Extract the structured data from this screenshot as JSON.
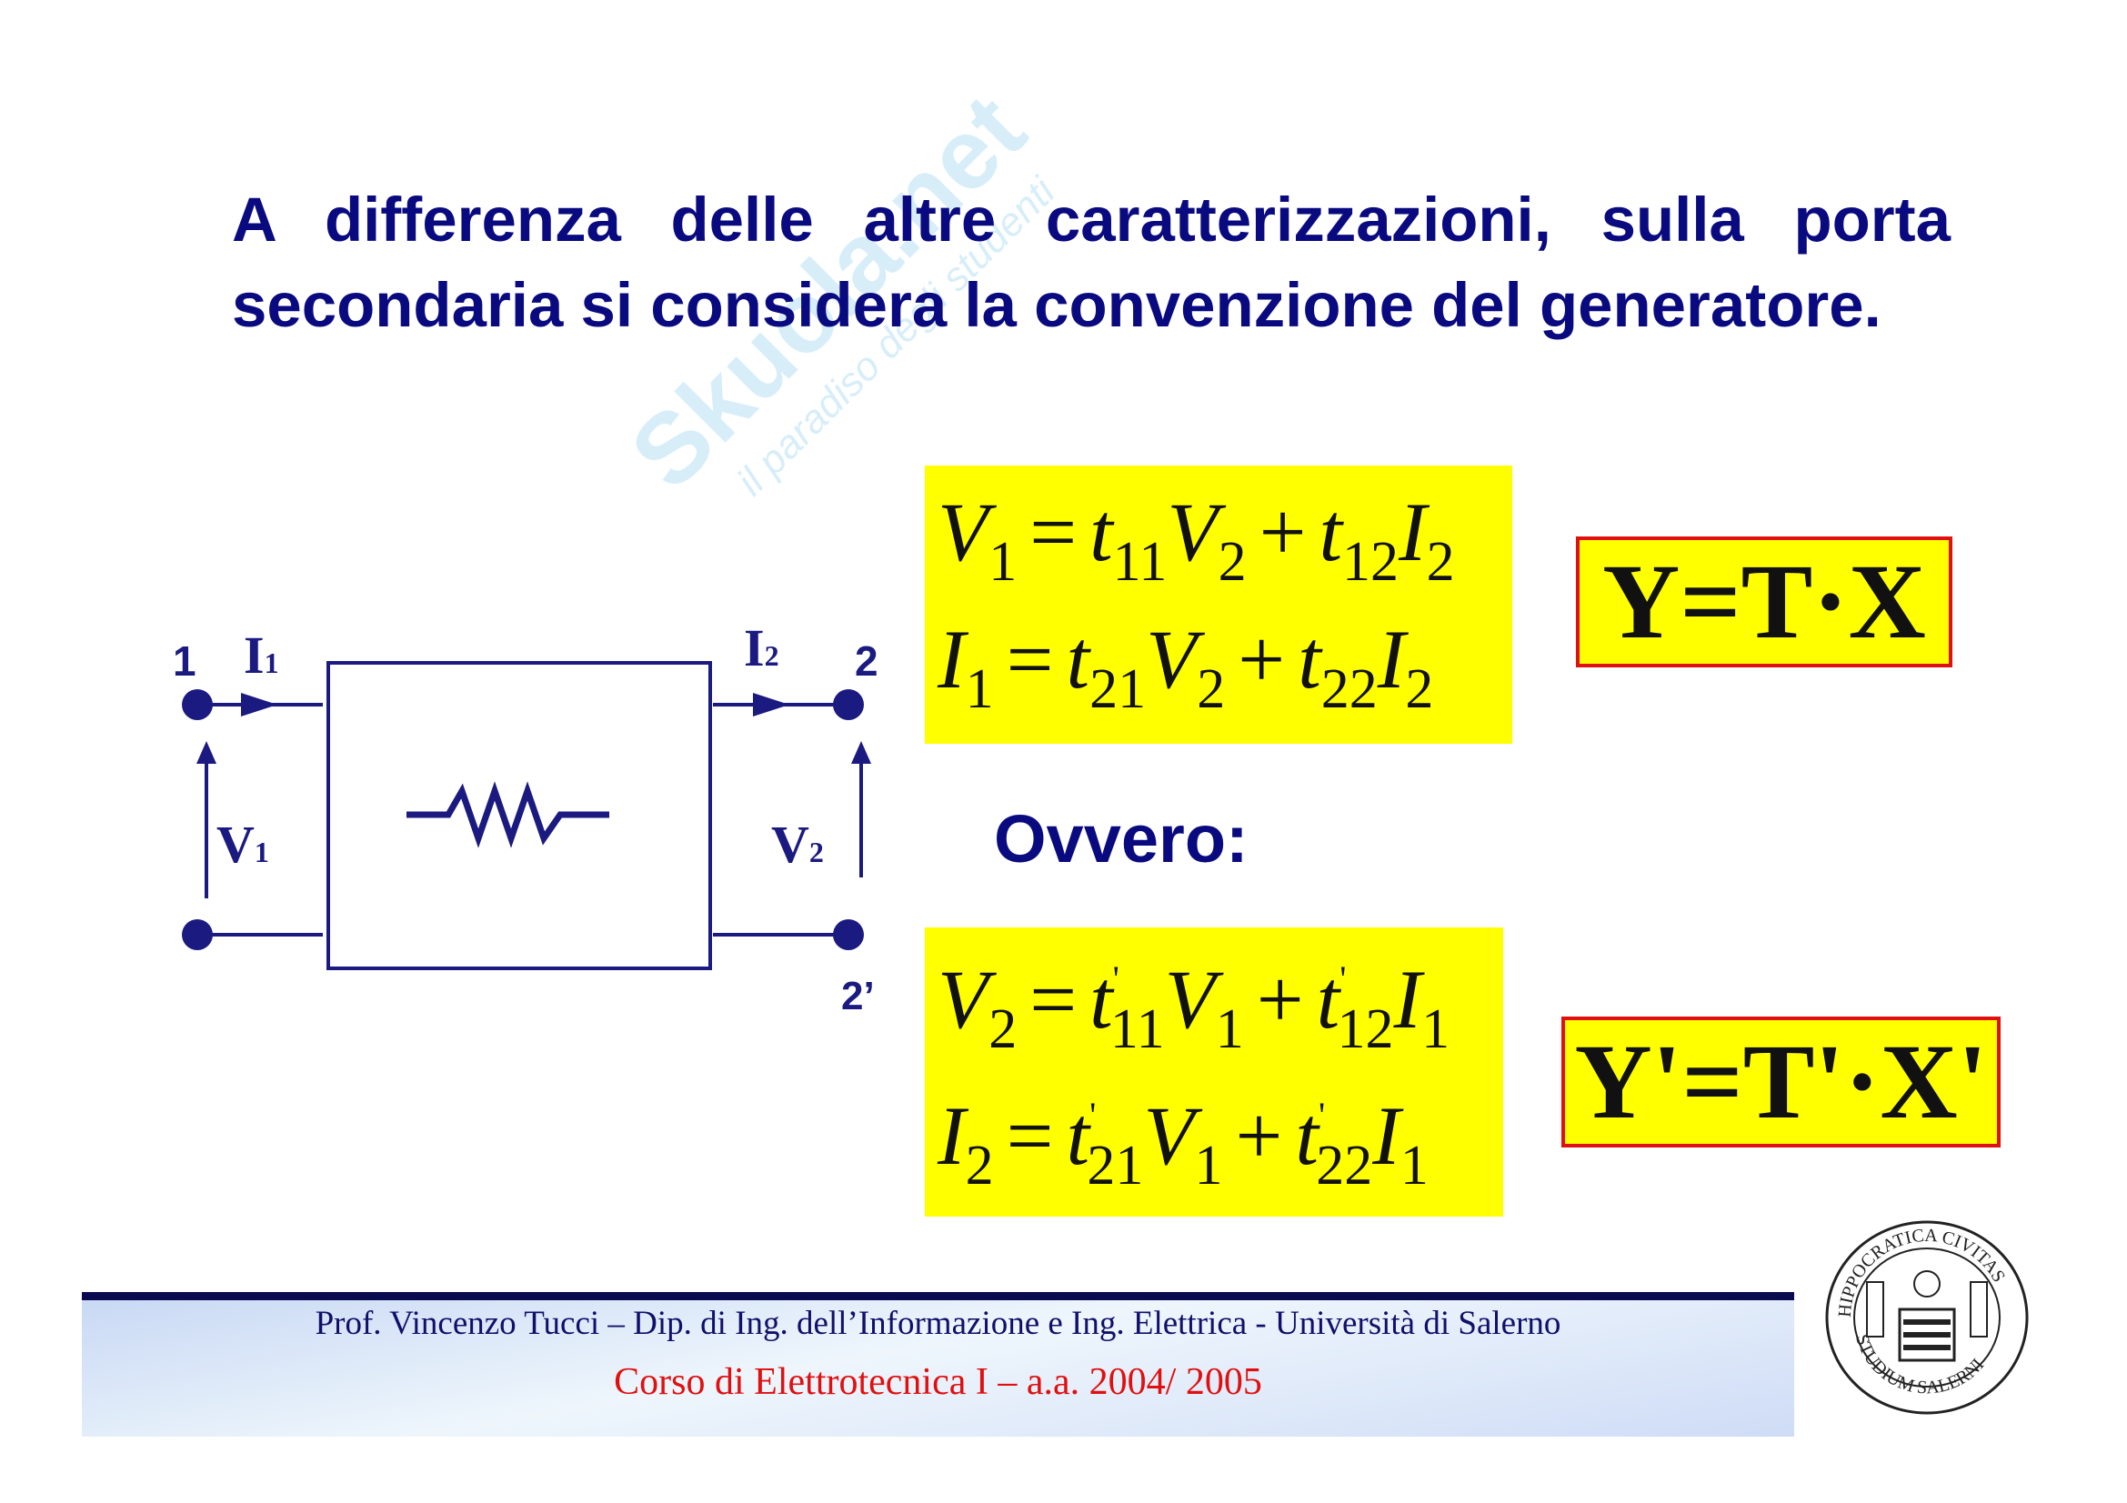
{
  "slide": {
    "title": "A differenza delle altre caratterizzazioni, sulla porta secondaria si considera la convenzione del generatore.",
    "watermark": {
      "brand": "Skuola.net",
      "tagline": "il paradiso degli studenti"
    },
    "circuit": {
      "port1_label": "1",
      "port2_label": "2",
      "port2_prime_label": "2’",
      "current1": "I",
      "current1_sub": "1",
      "current2": "I",
      "current2_sub": "2",
      "voltage1": "V",
      "voltage1_sub": "1",
      "voltage2": "V",
      "voltage2_sub": "2"
    },
    "equations_direct": [
      {
        "lhs": "V",
        "lhs_sub": "1",
        "a": "t",
        "a_sub": "11",
        "x1": "V",
        "x1_sub": "2",
        "b": "t",
        "b_sub": "12",
        "x2": "I",
        "x2_sub": "2"
      },
      {
        "lhs": "I",
        "lhs_sub": "1",
        "a": "t",
        "a_sub": "21",
        "x1": "V",
        "x1_sub": "2",
        "b": "t",
        "b_sub": "22",
        "x2": "I",
        "x2_sub": "2"
      }
    ],
    "matrix_direct": "Y=T·X",
    "ovvero": "Ovvero:",
    "equations_inverse": [
      {
        "lhs": "V",
        "lhs_sub": "2",
        "a": "t",
        "a_sub": "11",
        "x1": "V",
        "x1_sub": "1",
        "b": "t",
        "b_sub": "12",
        "x2": "I",
        "x2_sub": "1"
      },
      {
        "lhs": "I",
        "lhs_sub": "2",
        "a": "t",
        "a_sub": "21",
        "x1": "V",
        "x1_sub": "1",
        "b": "t",
        "b_sub": "22",
        "x2": "I",
        "x2_sub": "1"
      }
    ],
    "matrix_inverse": "Y'=T'·X'",
    "operators": {
      "eq": "=",
      "plus": "+",
      "prime": "'"
    }
  },
  "footer": {
    "line1": "Prof. Vincenzo Tucci – Dip. di Ing. dell’Informazione e Ing. Elettrica - Università di Salerno",
    "line2": "Corso di Elettrotecnica I –  a.a.  2004/ 2005",
    "seal_text_top": "HIPPOCRATICA CIVITAS",
    "seal_text_bottom": "STUDIUM SALERNI"
  },
  "colors": {
    "title": "#0a0a80",
    "highlight": "#ffff00",
    "box_border": "#e01010",
    "footer_red": "#e01010"
  }
}
